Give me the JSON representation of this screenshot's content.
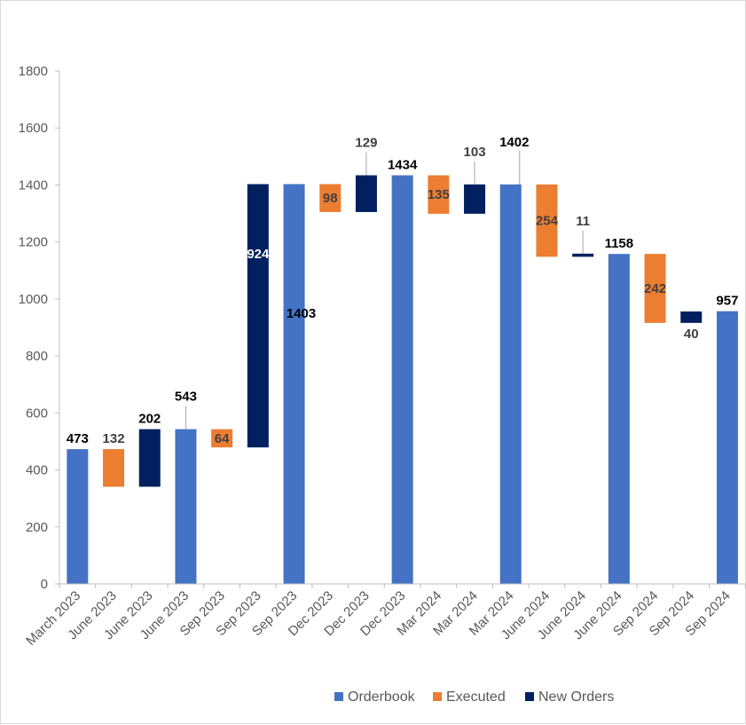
{
  "colors": {
    "orderbook": "#4472c4",
    "executed": "#ed7d31",
    "new_orders": "#002060",
    "axis": "#bfbfbf",
    "tick_text": "#595959",
    "label_dark": "#000000",
    "label_gray": "#404040",
    "label_white": "#ffffff"
  },
  "chart_data": {
    "type": "waterfall",
    "title": "",
    "xlabel": "",
    "ylabel": "",
    "ylim": [
      0,
      1800
    ],
    "yticks": [
      0,
      200,
      400,
      600,
      800,
      1000,
      1200,
      1400,
      1600,
      1800
    ],
    "grid": false,
    "legend_position": "bottom-right",
    "series": [
      {
        "key": "orderbook",
        "name": "Orderbook"
      },
      {
        "key": "executed",
        "name": "Executed"
      },
      {
        "key": "new_orders",
        "name": "New Orders"
      }
    ],
    "bars": [
      {
        "category": "March 2023",
        "series": "orderbook",
        "base": 0,
        "top": 473,
        "label": "473",
        "label_style": "above",
        "label_color": "label_dark"
      },
      {
        "category": "June 2023",
        "series": "executed",
        "base": 341,
        "top": 473,
        "label": "132",
        "label_style": "above",
        "label_color": "label_gray"
      },
      {
        "category": "June 2023",
        "series": "new_orders",
        "base": 341,
        "top": 543,
        "label": "202",
        "label_style": "above",
        "label_color": "label_dark"
      },
      {
        "category": "June 2023",
        "series": "orderbook",
        "base": 0,
        "top": 543,
        "label": "543",
        "label_style": "callout",
        "label_color": "label_dark"
      },
      {
        "category": "Sep 2023",
        "series": "executed",
        "base": 479,
        "top": 543,
        "label": "64",
        "label_style": "inside",
        "label_color": "label_gray"
      },
      {
        "category": "Sep 2023",
        "series": "new_orders",
        "base": 479,
        "top": 1403,
        "label": "924",
        "label_style": "inside-high",
        "label_color": "label_white"
      },
      {
        "category": "Sep 2023",
        "series": "orderbook",
        "base": 0,
        "top": 1403,
        "label": "1403",
        "label_style": "side",
        "label_color": "label_dark"
      },
      {
        "category": "Dec 2023",
        "series": "executed",
        "base": 1305,
        "top": 1403,
        "label": "98",
        "label_style": "inside",
        "label_color": "label_gray"
      },
      {
        "category": "Dec 2023",
        "series": "new_orders",
        "base": 1305,
        "top": 1434,
        "label": "129",
        "label_style": "callout",
        "label_color": "label_gray"
      },
      {
        "category": "Dec 2023",
        "series": "orderbook",
        "base": 0,
        "top": 1434,
        "label": "1434",
        "label_style": "above",
        "label_color": "label_dark"
      },
      {
        "category": "Mar 2024",
        "series": "executed",
        "base": 1299,
        "top": 1434,
        "label": "135",
        "label_style": "inside",
        "label_color": "label_gray"
      },
      {
        "category": "Mar 2024",
        "series": "new_orders",
        "base": 1299,
        "top": 1402,
        "label": "103",
        "label_style": "callout",
        "label_color": "label_gray"
      },
      {
        "category": "Mar 2024",
        "series": "orderbook",
        "base": 0,
        "top": 1402,
        "label": "1402",
        "label_style": "callout-high",
        "label_color": "label_dark"
      },
      {
        "category": "June 2024",
        "series": "executed",
        "base": 1148,
        "top": 1402,
        "label": "254",
        "label_style": "inside",
        "label_color": "label_gray"
      },
      {
        "category": "June 2024",
        "series": "new_orders",
        "base": 1148,
        "top": 1159,
        "label": "11",
        "label_style": "callout",
        "label_color": "label_gray"
      },
      {
        "category": "June 2024",
        "series": "orderbook",
        "base": 0,
        "top": 1158,
        "label": "1158",
        "label_style": "above",
        "label_color": "label_dark"
      },
      {
        "category": "Sep 2024",
        "series": "executed",
        "base": 916,
        "top": 1158,
        "label": "242",
        "label_style": "inside",
        "label_color": "label_gray"
      },
      {
        "category": "Sep 2024",
        "series": "new_orders",
        "base": 916,
        "top": 956,
        "label": "40",
        "label_style": "below",
        "label_color": "label_gray"
      },
      {
        "category": "Sep 2024",
        "series": "orderbook",
        "base": 0,
        "top": 957,
        "label": "957",
        "label_style": "above",
        "label_color": "label_dark"
      }
    ]
  }
}
